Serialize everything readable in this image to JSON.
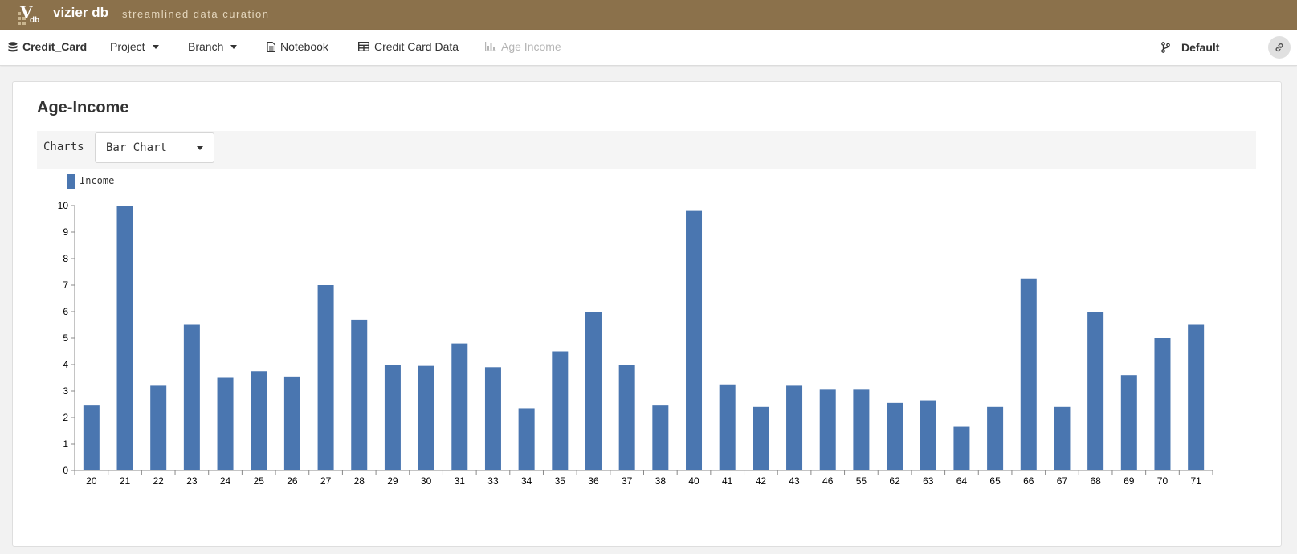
{
  "brand": {
    "title": "vizier db",
    "tagline": "streamlined data curation",
    "logo_letter": "V",
    "logo_sub": "db"
  },
  "nav": {
    "project_name": "Credit_Card",
    "project_menu": "Project",
    "branch_menu": "Branch",
    "notebook": "Notebook",
    "dataset": "Credit Card Data",
    "chart_view": "Age Income",
    "branch_name": "Default"
  },
  "panel": {
    "title": "Age-Income",
    "charts_label": "Charts",
    "chart_type_selected": "Bar Chart"
  },
  "colors": {
    "brand": "#8b714b",
    "bar": "#4a76b0"
  },
  "chart_data": {
    "type": "bar",
    "legend": [
      "Income"
    ],
    "categories": [
      "20",
      "21",
      "22",
      "23",
      "24",
      "25",
      "26",
      "27",
      "28",
      "29",
      "30",
      "31",
      "33",
      "34",
      "35",
      "36",
      "37",
      "38",
      "40",
      "41",
      "42",
      "43",
      "46",
      "55",
      "62",
      "63",
      "64",
      "65",
      "66",
      "67",
      "68",
      "69",
      "70",
      "71"
    ],
    "series": [
      {
        "name": "Income",
        "values": [
          2.45,
          10,
          3.2,
          5.5,
          3.5,
          3.75,
          3.55,
          7,
          5.7,
          4,
          3.95,
          4.8,
          3.9,
          2.35,
          4.5,
          6,
          4,
          2.45,
          9.8,
          3.25,
          2.4,
          3.2,
          3.05,
          3.05,
          2.55,
          2.65,
          1.65,
          2.4,
          7.25,
          2.4,
          6,
          3.6,
          5,
          5.5
        ]
      }
    ],
    "yticks": [
      "0",
      "1",
      "2",
      "3",
      "4",
      "5",
      "6",
      "7",
      "8",
      "9",
      "10"
    ],
    "ylim": [
      0,
      10
    ],
    "grid": false,
    "legend_position": "top-left"
  }
}
